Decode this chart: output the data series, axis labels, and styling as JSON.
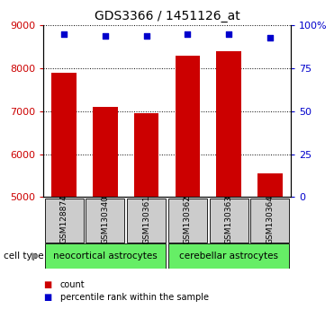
{
  "title": "GDS3366 / 1451126_at",
  "samples": [
    "GSM128874",
    "GSM130340",
    "GSM130361",
    "GSM130362",
    "GSM130363",
    "GSM130364"
  ],
  "bar_values": [
    7900,
    7100,
    6950,
    8300,
    8400,
    5550
  ],
  "percentile_values": [
    95,
    94,
    94,
    95,
    95,
    93
  ],
  "bar_color": "#cc0000",
  "percentile_color": "#0000cc",
  "ylim_left": [
    5000,
    9000
  ],
  "ylim_right": [
    0,
    100
  ],
  "yticks_left": [
    5000,
    6000,
    7000,
    8000,
    9000
  ],
  "yticks_right": [
    0,
    25,
    50,
    75,
    100
  ],
  "ytick_labels_right": [
    "0",
    "25",
    "50",
    "75",
    "100%"
  ],
  "group1_label": "neocortical astrocytes",
  "group2_label": "cerebellar astrocytes",
  "cell_type_label": "cell type",
  "legend_count": "count",
  "legend_percentile": "percentile rank within the sample",
  "bg_color": "#ffffff",
  "group_bg_color": "#66ee66",
  "tick_area_bg": "#cccccc",
  "bar_width": 0.6
}
